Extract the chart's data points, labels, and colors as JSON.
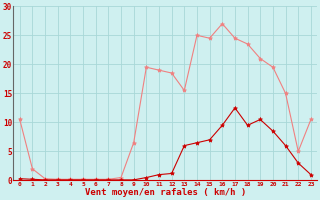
{
  "x": [
    0,
    1,
    2,
    3,
    4,
    5,
    6,
    7,
    8,
    9,
    10,
    11,
    12,
    13,
    14,
    15,
    16,
    17,
    18,
    19,
    20,
    21,
    22,
    23
  ],
  "rafales": [
    10.5,
    2.0,
    0.3,
    0.2,
    0.2,
    0.2,
    0.2,
    0.2,
    0.5,
    6.5,
    19.5,
    19.0,
    18.5,
    15.5,
    25.0,
    24.5,
    27.0,
    24.5,
    23.5,
    21.0,
    19.5,
    15.0,
    5.0,
    10.5
  ],
  "moyen": [
    0.3,
    0.2,
    0.1,
    0.1,
    0.1,
    0.1,
    0.1,
    0.1,
    0.1,
    0.1,
    0.5,
    1.0,
    1.2,
    6.0,
    6.5,
    7.0,
    9.5,
    12.5,
    9.5,
    10.5,
    8.5,
    6.0,
    3.0,
    1.0
  ],
  "line_color_rafales": "#f08080",
  "line_color_moyen": "#cc0000",
  "bg_color": "#cff0f0",
  "grid_color": "#a8d8d8",
  "xlabel": "Vent moyen/en rafales ( km/h )",
  "ylim": [
    0,
    30
  ],
  "xlim_min": -0.5,
  "xlim_max": 23.5,
  "yticks": [
    0,
    5,
    10,
    15,
    20,
    25,
    30
  ],
  "xticks": [
    0,
    1,
    2,
    3,
    4,
    5,
    6,
    7,
    8,
    9,
    10,
    11,
    12,
    13,
    14,
    15,
    16,
    17,
    18,
    19,
    20,
    21,
    22,
    23
  ]
}
